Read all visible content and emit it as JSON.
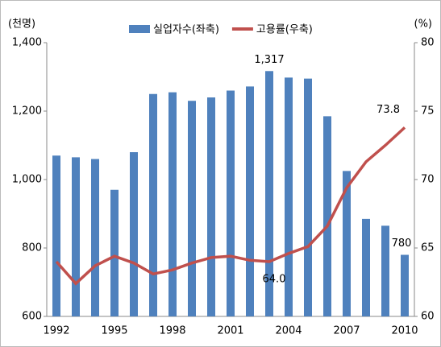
{
  "chart_data": {
    "type": "bar_line",
    "left_axis_label": "(천명)",
    "right_axis_label": "(%)",
    "categories": [
      "1992",
      null,
      null,
      "1995",
      null,
      null,
      "1998",
      null,
      null,
      "2001",
      null,
      null,
      "2004",
      null,
      null,
      "2007",
      null,
      null,
      "2010"
    ],
    "series": [
      {
        "name": "실업자수(좌축)",
        "color": "#4f81bd",
        "type": "bar",
        "values": [
          1070,
          1065,
          1060,
          970,
          1080,
          1250,
          1255,
          1230,
          1240,
          1260,
          1272,
          1317,
          1298,
          1295,
          1185,
          1025,
          885,
          865,
          780
        ],
        "value_labels": [
          null,
          null,
          null,
          null,
          null,
          null,
          null,
          null,
          null,
          null,
          null,
          "1,317",
          null,
          null,
          null,
          null,
          null,
          null,
          "780"
        ]
      },
      {
        "name": "고용률(우축)",
        "color": "#c0504d",
        "type": "line",
        "axis": "y2",
        "values": [
          64.0,
          62.4,
          63.7,
          64.4,
          63.9,
          63.1,
          63.4,
          63.9,
          64.3,
          64.4,
          64.1,
          64.0,
          64.6,
          65.1,
          66.6,
          69.4,
          71.3,
          72.5,
          73.8
        ],
        "value_labels": [
          null,
          null,
          null,
          null,
          null,
          null,
          null,
          null,
          null,
          null,
          null,
          "64.0",
          null,
          null,
          null,
          null,
          null,
          null,
          "73.8"
        ]
      }
    ],
    "ylim": [
      600,
      1400
    ],
    "yticks": [
      600,
      800,
      {
        "value": 1000,
        "label": "1,000"
      },
      {
        "value": 1200,
        "label": "1,200"
      },
      {
        "value": 1400,
        "label": "1,400"
      }
    ],
    "y2lim": [
      60,
      80
    ],
    "y2ticks": [
      60,
      65,
      70,
      75,
      80
    ]
  }
}
